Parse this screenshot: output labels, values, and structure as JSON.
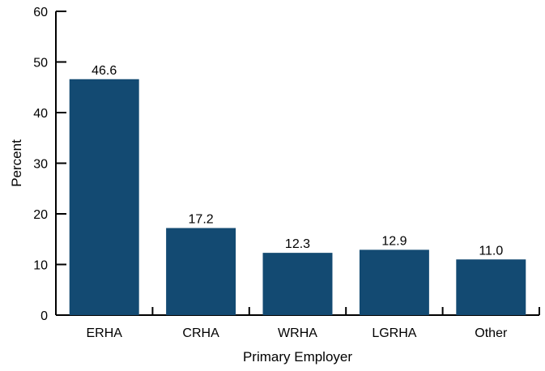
{
  "chart_data": {
    "type": "bar",
    "categories": [
      "ERHA",
      "CRHA",
      "WRHA",
      "LGRHA",
      "Other"
    ],
    "values": [
      46.6,
      17.2,
      12.3,
      12.9,
      11.0
    ],
    "data_labels": [
      "46.6",
      "17.2",
      "12.3",
      "12.9",
      "11.0"
    ],
    "xlabel": "Primary Employer",
    "ylabel": "Percent",
    "ylim": [
      0,
      60
    ],
    "yticks": [
      0,
      10,
      20,
      30,
      40,
      50,
      60
    ],
    "grid": false,
    "bar_color": "#134a72",
    "axis_color": "#000000"
  }
}
